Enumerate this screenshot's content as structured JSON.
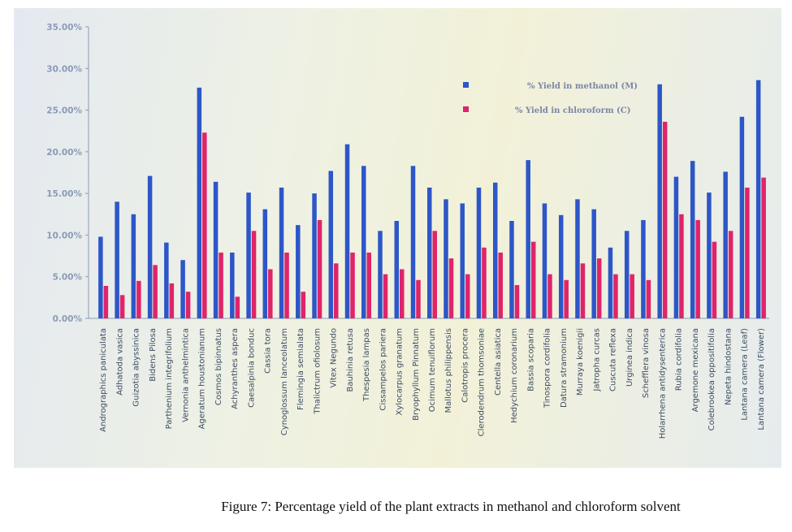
{
  "figure": {
    "caption": "Figure 7: Percentage yield of the plant extracts in methanol and chloroform solvent"
  },
  "chart_data": {
    "type": "bar",
    "title": "",
    "xlabel": "",
    "ylabel": "",
    "ylim": [
      0,
      35
    ],
    "yticks": [
      "0.00%",
      "5.00%",
      "10.00%",
      "15.00%",
      "20.00%",
      "25.00%",
      "30.00%",
      "35.00%"
    ],
    "grid": false,
    "legend_position": "top-right",
    "colors": {
      "methanol": "#2d56c8",
      "chloroform": "#e0246a"
    },
    "categories": [
      "Andrographics paniculata",
      "Adhatoda vasica",
      "Guizotia abyssinica",
      "Bidens Pilosa",
      "Parthenium integrifolium",
      "Vernonia anthelmintica",
      "Ageratum houstonianum",
      "Cosmos bipinnatus",
      "Achyranthes aspera",
      "Caesalpinia bonduc",
      "Cassia tora",
      "Cynoglossum lanceolatum",
      "Flemingia semialata",
      "Thalictrum ofiolosum",
      "Vitex Negundo",
      "Bauhinia retusa",
      "Thespesia lampas",
      "Cissampelos pariera",
      "Xylocarpus granatum",
      "Bryophyllum Pinnatum",
      "Ocimum tenuiflorum",
      "Mallotus philippensis",
      "Calotropis procera",
      "Clerodendrum thomsoniae",
      "Centella asiatica",
      "Hedychium coronarium",
      "Bassia scoparia",
      "Tinospora cordifolia",
      "Datura stramonium",
      "Murraya koenigii",
      "Jatropha curcas",
      "Cuscuta reflexa",
      "Urginea indica",
      "Schefflera vinosa",
      "Holarrhena antidysenterica",
      "Rubia cordifolia",
      "Argemone mexicana",
      "Colebrookea oppositifolia",
      "Nepeta hindostana",
      "Lantana camera (Leaf)",
      "Lantana camera (Flower)"
    ],
    "series": [
      {
        "name": "% Yield in methanol (M)",
        "values": [
          9.8,
          14.0,
          12.5,
          17.1,
          9.1,
          7.0,
          27.7,
          16.4,
          7.9,
          15.1,
          13.1,
          15.7,
          11.2,
          15.0,
          17.7,
          20.9,
          18.3,
          10.5,
          11.7,
          18.3,
          15.7,
          14.3,
          13.8,
          15.7,
          16.3,
          11.7,
          19.0,
          13.8,
          12.4,
          14.3,
          13.1,
          8.5,
          10.5,
          11.8,
          28.1,
          17.0,
          18.9,
          15.1,
          17.6,
          24.2,
          28.6
        ]
      },
      {
        "name": "% Yield in chloroform (C)",
        "values": [
          3.9,
          2.8,
          4.5,
          6.4,
          4.2,
          3.2,
          22.3,
          7.9,
          2.6,
          10.5,
          5.9,
          7.9,
          3.2,
          11.8,
          6.6,
          7.9,
          7.9,
          5.3,
          5.9,
          4.6,
          10.5,
          7.2,
          5.3,
          8.5,
          7.9,
          4.0,
          9.2,
          5.3,
          4.6,
          6.6,
          7.2,
          5.3,
          5.3,
          4.6,
          23.6,
          12.5,
          11.8,
          9.2,
          10.5,
          15.7,
          16.9
        ]
      }
    ]
  }
}
